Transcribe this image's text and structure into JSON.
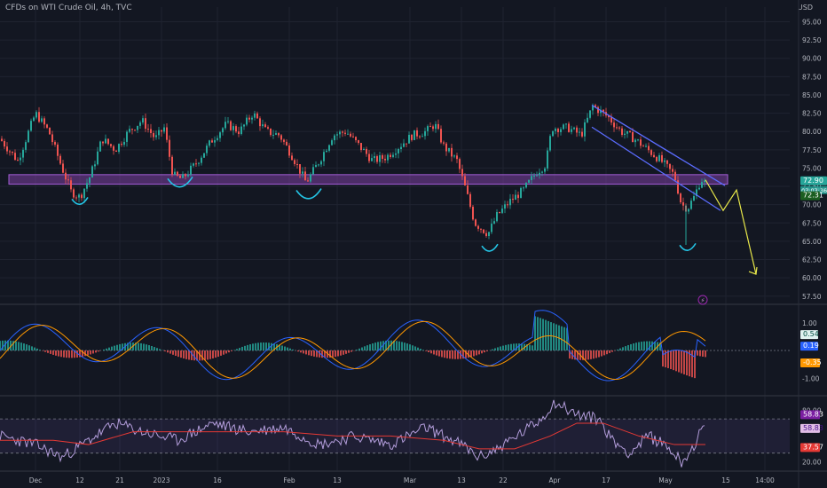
{
  "header": {
    "symbol_label": "CFDs on WTI Crude Oil, 4h, TVC",
    "currency": "USD"
  },
  "colors": {
    "background": "#131722",
    "grid": "#1f2330",
    "up": "#26a69a",
    "down": "#ef5350",
    "zone": "#7b3fa0",
    "channel": "#5b6cff",
    "arrow": "#e8e84a",
    "markers": "#24c5e6",
    "macd": "#2962ff",
    "signal": "#ff9800",
    "rsi": "#b39ddb",
    "rsi_ma": "#e53935"
  },
  "chart_data": [
    {
      "type": "candlestick",
      "panel": "price",
      "y_ticks": [
        "95.00",
        "92.50",
        "90.00",
        "87.50",
        "85.00",
        "82.50",
        "80.00",
        "77.50",
        "75.00",
        "72.50",
        "70.00",
        "67.50",
        "65.00",
        "62.50",
        "60.00",
        "57.50"
      ],
      "ylim": [
        56.5,
        97.0
      ],
      "price_points": [
        [
          0,
          79.0
        ],
        [
          20,
          76.0
        ],
        [
          40,
          82.5
        ],
        [
          55,
          80.0
        ],
        [
          70,
          75.0
        ],
        [
          80,
          71.8
        ],
        [
          90,
          71.0
        ],
        [
          102,
          74.0
        ],
        [
          115,
          79.0
        ],
        [
          130,
          77.5
        ],
        [
          145,
          80.0
        ],
        [
          160,
          81.5
        ],
        [
          175,
          79.0
        ],
        [
          185,
          80.5
        ],
        [
          195,
          74.0
        ],
        [
          205,
          73.5
        ],
        [
          220,
          75.5
        ],
        [
          240,
          79.0
        ],
        [
          255,
          81.0
        ],
        [
          270,
          80.0
        ],
        [
          285,
          82.5
        ],
        [
          300,
          80.0
        ],
        [
          315,
          79.5
        ],
        [
          330,
          76.5
        ],
        [
          345,
          73.0
        ],
        [
          360,
          76.0
        ],
        [
          375,
          79.5
        ],
        [
          390,
          80.0
        ],
        [
          405,
          78.0
        ],
        [
          420,
          76.0
        ],
        [
          435,
          76.5
        ],
        [
          450,
          78.0
        ],
        [
          465,
          79.5
        ],
        [
          480,
          80.0
        ],
        [
          490,
          81.0
        ],
        [
          500,
          78.0
        ],
        [
          515,
          76.0
        ],
        [
          525,
          72.0
        ],
        [
          535,
          67.5
        ],
        [
          550,
          66.0
        ],
        [
          560,
          68.5
        ],
        [
          575,
          70.5
        ],
        [
          590,
          72.0
        ],
        [
          605,
          74.5
        ],
        [
          615,
          75.5
        ],
        [
          622,
          80.5
        ],
        [
          640,
          80.5
        ],
        [
          655,
          79.5
        ],
        [
          668,
          83.5
        ],
        [
          685,
          82.0
        ],
        [
          700,
          80.0
        ],
        [
          715,
          79.0
        ],
        [
          730,
          77.5
        ],
        [
          745,
          76.0
        ],
        [
          760,
          74.0
        ],
        [
          768,
          70.0
        ],
        [
          775,
          69.5
        ],
        [
          782,
          71.0
        ],
        [
          790,
          73.5
        ],
        [
          795,
          72.9
        ]
      ],
      "wick_low": [
        773,
        64.5
      ],
      "zone": [
        72.8,
        74.1
      ],
      "channel_upper": [
        [
          667,
          83.6
        ],
        [
          817,
          72.6
        ]
      ],
      "channel_lower": [
        [
          667,
          80.6
        ],
        [
          812,
          69.2
        ]
      ],
      "projection": [
        [
          795,
          73.4
        ],
        [
          815,
          69.2
        ],
        [
          830,
          72.0
        ],
        [
          852,
          60.5
        ]
      ],
      "markers": [
        {
          "x": 90,
          "y": 71.0,
          "size": "small"
        },
        {
          "x": 203,
          "y": 73.8,
          "size": "large"
        },
        {
          "x": 348,
          "y": 72.2,
          "size": "large"
        },
        {
          "x": 552,
          "y": 64.6,
          "size": "small"
        },
        {
          "x": 775,
          "y": 64.7,
          "size": "small"
        }
      ],
      "last_price": {
        "value": "72.90",
        "countdown": "03:03:36"
      },
      "prev_close": {
        "value": "72.31"
      },
      "alert_icon": "lightning-icon"
    },
    {
      "type": "macd",
      "panel": "macd",
      "y_ticks": [
        "1.00",
        "-1.00"
      ],
      "ylim": [
        -1.6,
        1.6
      ],
      "labels": {
        "histogram": "0.54",
        "macd": "0.19",
        "signal": "-0.35"
      }
    },
    {
      "type": "rsi",
      "panel": "rsi",
      "y_ticks": [
        "80.00",
        "20.00"
      ],
      "ylim": [
        10,
        95
      ],
      "bands": [
        70,
        30
      ],
      "labels": {
        "upper": "58.83",
        "rsi": "58.83",
        "ma": "37.57"
      },
      "key_points": [
        [
          0,
          50
        ],
        [
          40,
          40
        ],
        [
          70,
          25
        ],
        [
          100,
          45
        ],
        [
          130,
          65
        ],
        [
          160,
          55
        ],
        [
          200,
          45
        ],
        [
          240,
          65
        ],
        [
          280,
          55
        ],
        [
          320,
          60
        ],
        [
          360,
          40
        ],
        [
          400,
          50
        ],
        [
          440,
          40
        ],
        [
          480,
          60
        ],
        [
          520,
          40
        ],
        [
          540,
          25
        ],
        [
          560,
          35
        ],
        [
          590,
          55
        ],
        [
          610,
          70
        ],
        [
          625,
          90
        ],
        [
          650,
          75
        ],
        [
          675,
          70
        ],
        [
          690,
          45
        ],
        [
          710,
          30
        ],
        [
          730,
          50
        ],
        [
          750,
          40
        ],
        [
          768,
          20
        ],
        [
          780,
          35
        ],
        [
          795,
          65
        ]
      ],
      "ma_points": [
        [
          0,
          45
        ],
        [
          60,
          45
        ],
        [
          100,
          40
        ],
        [
          150,
          55
        ],
        [
          200,
          55
        ],
        [
          260,
          55
        ],
        [
          320,
          55
        ],
        [
          380,
          50
        ],
        [
          440,
          50
        ],
        [
          500,
          45
        ],
        [
          540,
          35
        ],
        [
          580,
          35
        ],
        [
          620,
          50
        ],
        [
          650,
          65
        ],
        [
          680,
          65
        ],
        [
          720,
          50
        ],
        [
          760,
          40
        ],
        [
          795,
          40
        ]
      ]
    }
  ],
  "x_axis": {
    "ticks": [
      {
        "x": 40,
        "label": "Dec"
      },
      {
        "x": 90,
        "label": "12"
      },
      {
        "x": 135,
        "label": "21"
      },
      {
        "x": 182,
        "label": "2023"
      },
      {
        "x": 245,
        "label": "16"
      },
      {
        "x": 326,
        "label": "Feb"
      },
      {
        "x": 380,
        "label": "13"
      },
      {
        "x": 462,
        "label": "Mar"
      },
      {
        "x": 520,
        "label": "13"
      },
      {
        "x": 567,
        "label": "22"
      },
      {
        "x": 625,
        "label": "Apr"
      },
      {
        "x": 683,
        "label": "17"
      },
      {
        "x": 750,
        "label": "May"
      },
      {
        "x": 818,
        "label": "15"
      },
      {
        "x": 862,
        "label": "14:00"
      }
    ]
  }
}
